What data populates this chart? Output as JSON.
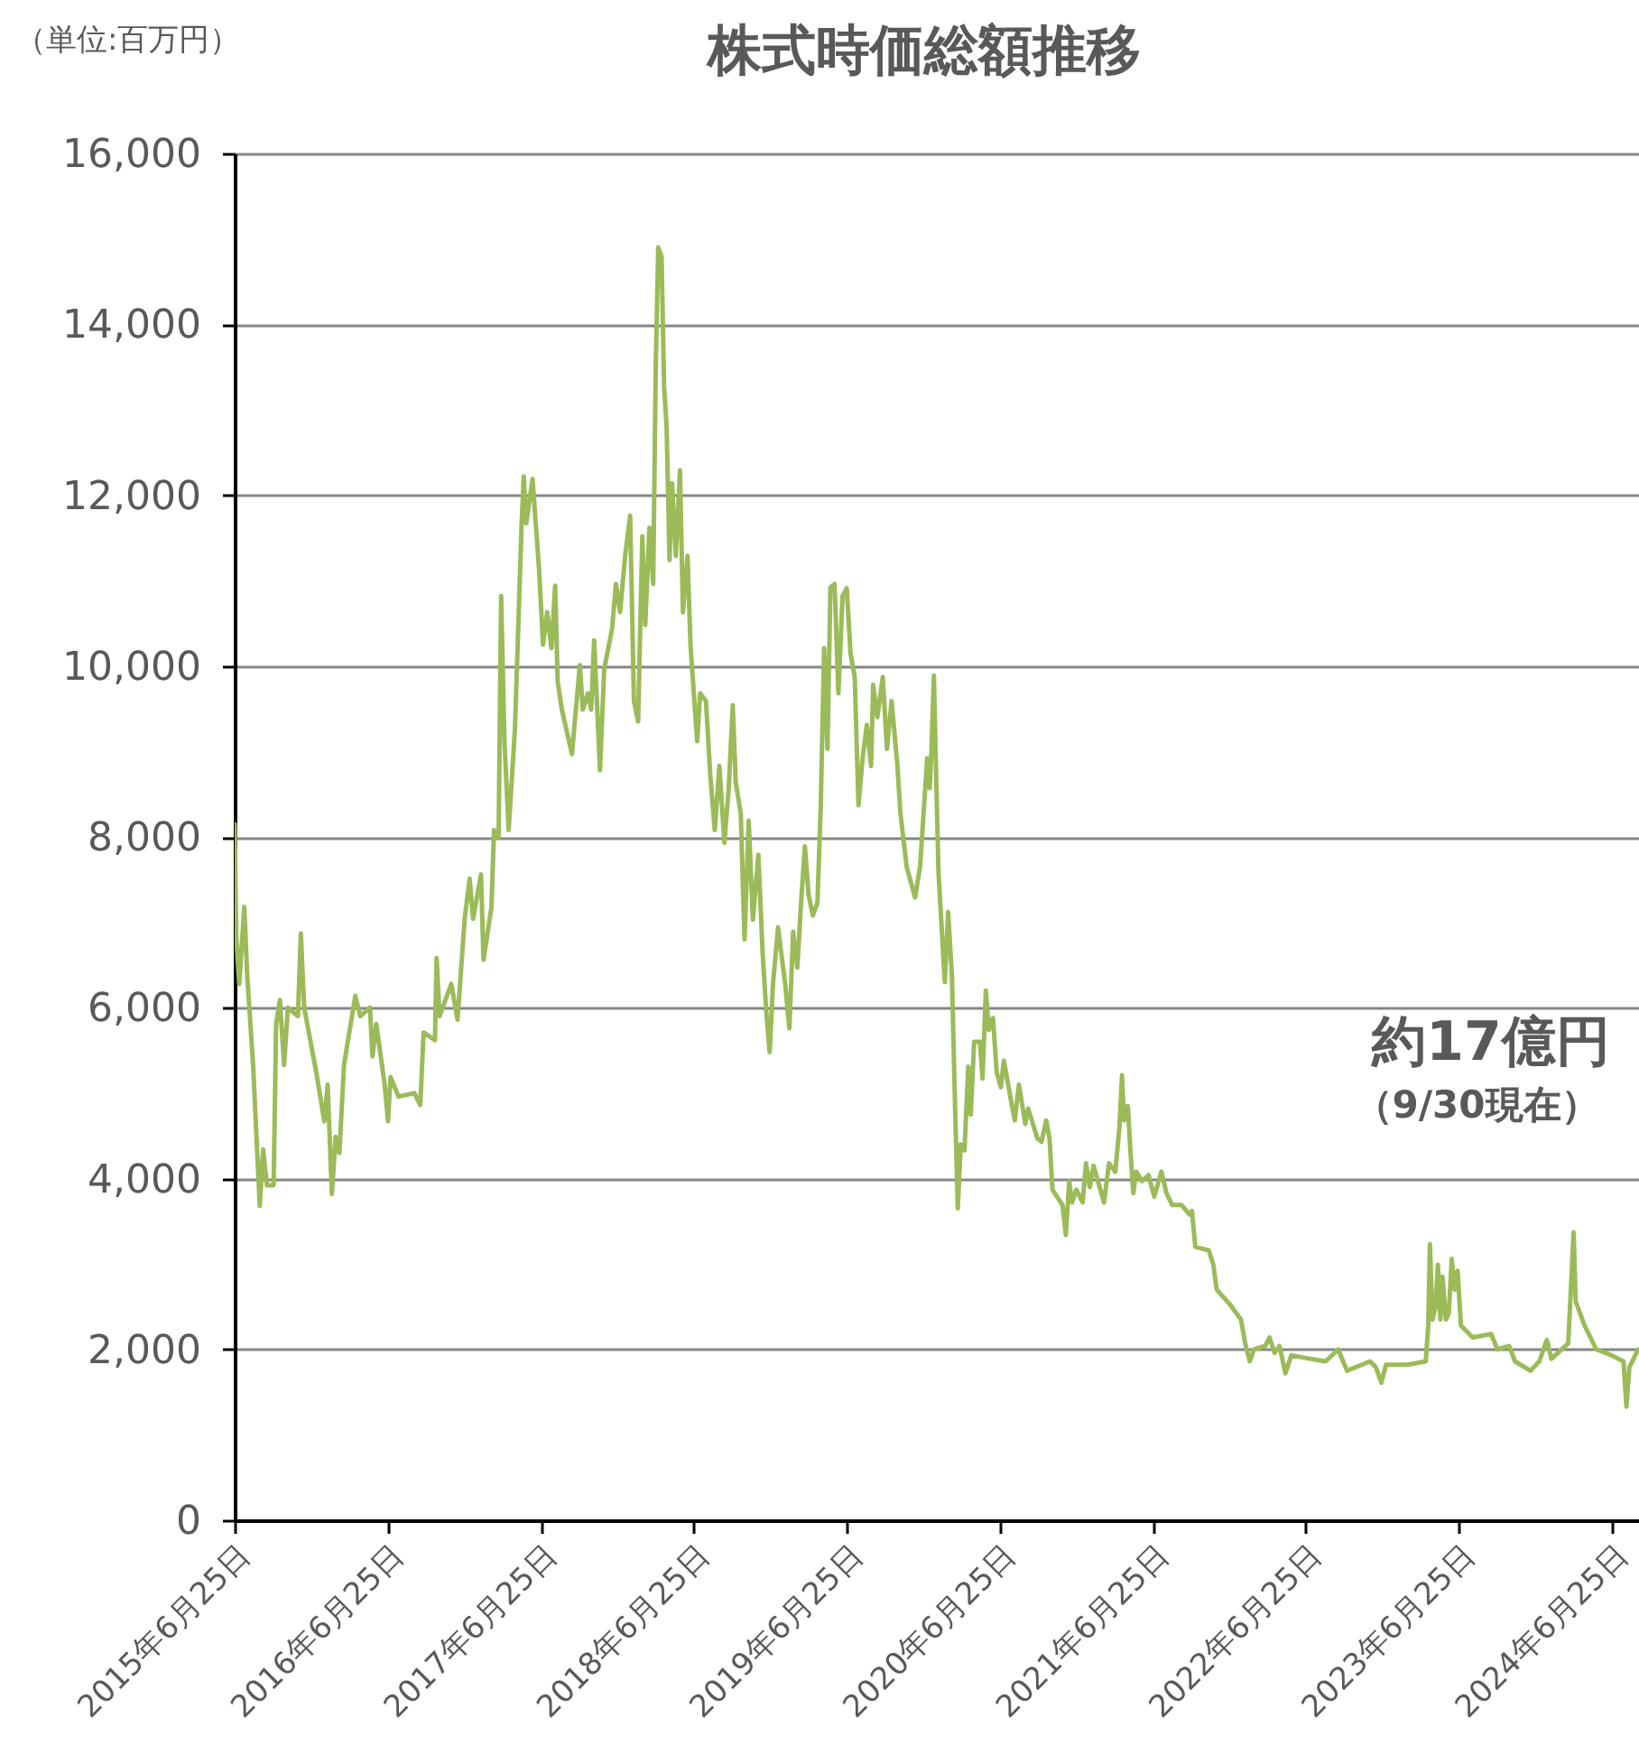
{
  "chart_data": {
    "type": "line",
    "title": "株式時価総額推移",
    "ylabel": "（単位:百万円）",
    "annotations": [
      "約17億円",
      "（9/30現在）"
    ],
    "x": [
      "2015-06-25",
      "2015-06-29",
      "2015-07-06",
      "2015-07-18",
      "2015-07-25",
      "2015-08-08",
      "2015-08-24",
      "2015-09-01",
      "2015-09-10",
      "2015-09-26",
      "2015-10-02",
      "2015-10-11",
      "2015-10-21",
      "2015-10-30",
      "2015-11-23",
      "2015-11-30",
      "2015-12-08",
      "2016-01-06",
      "2016-01-25",
      "2016-02-02",
      "2016-02-12",
      "2016-02-21",
      "2016-03-01",
      "2016-03-12",
      "2016-04-08",
      "2016-04-20",
      "2016-05-13",
      "2016-05-19",
      "2016-05-28",
      "2016-06-17",
      "2016-06-25",
      "2016-07-01",
      "2016-07-20",
      "2016-08-27",
      "2016-09-10",
      "2016-09-18",
      "2016-10-15",
      "2016-10-19",
      "2016-10-26",
      "2016-11-23",
      "2016-12-08",
      "2016-12-25",
      "2017-01-06",
      "2017-01-14",
      "2017-02-02",
      "2017-02-08",
      "2017-02-27",
      "2017-03-05",
      "2017-03-16",
      "2017-03-22",
      "2017-03-30",
      "2017-04-09",
      "2017-04-24",
      "2017-05-10",
      "2017-05-15",
      "2017-05-21",
      "2017-06-05",
      "2017-06-21",
      "2017-06-30",
      "2017-07-10",
      "2017-07-20",
      "2017-07-29",
      "2017-08-04",
      "2017-08-14",
      "2017-09-07",
      "2017-09-26",
      "2017-10-03",
      "2017-10-15",
      "2017-10-23",
      "2017-10-30",
      "2017-11-13",
      "2017-11-23",
      "2017-12-12",
      "2017-12-21",
      "2017-12-31",
      "2018-01-12",
      "2018-01-24",
      "2018-02-02",
      "2018-02-12",
      "2018-02-22",
      "2018-03-01",
      "2018-03-11",
      "2018-03-20",
      "2018-03-26",
      "2018-04-01",
      "2018-04-09",
      "2018-04-15",
      "2018-04-21",
      "2018-04-28",
      "2018-05-04",
      "2018-05-13",
      "2018-05-23",
      "2018-05-30",
      "2018-06-10",
      "2018-06-17",
      "2018-06-25",
      "2018-07-03",
      "2018-07-10",
      "2018-07-24",
      "2018-08-03",
      "2018-08-14",
      "2018-08-25",
      "2018-09-06",
      "2018-09-16",
      "2018-09-26",
      "2018-10-03",
      "2018-10-15",
      "2018-10-24",
      "2018-11-03",
      "2018-11-13",
      "2018-11-26",
      "2018-12-06",
      "2018-12-15",
      "2018-12-23",
      "2018-12-31",
      "2019-01-12",
      "2019-01-29",
      "2019-02-08",
      "2019-02-17",
      "2019-02-27",
      "2019-03-08",
      "2019-03-17",
      "2019-03-26",
      "2019-04-05",
      "2019-04-16",
      "2019-04-24",
      "2019-05-02",
      "2019-05-10",
      "2019-05-17",
      "2019-05-27",
      "2019-06-05",
      "2019-06-15",
      "2019-06-25",
      "2019-07-04",
      "2019-07-14",
      "2019-07-23",
      "2019-08-02",
      "2019-08-12",
      "2019-08-22",
      "2019-08-27",
      "2019-09-06",
      "2019-09-19",
      "2019-09-29",
      "2019-10-10",
      "2019-10-24",
      "2019-10-31",
      "2019-11-15",
      "2019-12-05",
      "2019-12-17",
      "2020-01-03",
      "2020-01-09",
      "2020-01-13",
      "2020-01-19",
      "2020-01-25",
      "2020-01-30",
      "2020-02-14",
      "2020-02-22",
      "2020-03-02",
      "2020-03-10",
      "2020-03-16",
      "2020-03-23",
      "2020-04-01",
      "2020-04-10",
      "2020-04-16",
      "2020-04-24",
      "2020-05-08",
      "2020-05-14",
      "2020-05-22",
      "2020-05-29",
      "2020-06-08",
      "2020-06-17",
      "2020-06-27",
      "2020-07-04",
      "2020-07-22",
      "2020-07-30",
      "2020-08-09",
      "2020-08-24",
      "2020-08-31",
      "2020-09-22",
      "2020-10-02",
      "2020-10-13",
      "2020-10-21",
      "2020-10-28",
      "2020-11-21",
      "2020-11-29",
      "2020-12-07",
      "2020-12-14",
      "2020-12-24",
      "2021-01-08",
      "2021-01-16",
      "2021-01-25",
      "2021-02-03",
      "2021-02-28",
      "2021-03-12",
      "2021-03-27",
      "2021-04-06",
      "2021-04-12",
      "2021-04-17",
      "2021-04-26",
      "2021-05-02",
      "2021-05-09",
      "2021-05-16",
      "2021-05-30",
      "2021-06-14",
      "2021-06-28",
      "2021-07-15",
      "2021-07-27",
      "2021-08-10",
      "2021-09-01",
      "2021-09-20",
      "2021-09-26",
      "2021-10-04",
      "2021-11-05",
      "2021-11-16",
      "2021-11-24",
      "2021-12-25",
      "2022-01-21",
      "2022-01-31",
      "2022-02-11",
      "2022-02-21",
      "2022-03-20",
      "2022-03-30",
      "2022-04-11",
      "2022-04-23",
      "2022-05-07",
      "2022-05-21",
      "2022-07-06",
      "2022-08-11",
      "2022-09-10",
      "2022-10-01",
      "2022-11-25",
      "2022-12-09",
      "2022-12-22",
      "2023-01-02",
      "2023-02-22",
      "2023-04-07",
      "2023-04-13",
      "2023-04-17",
      "2023-04-23",
      "2023-04-30",
      "2023-05-06",
      "2023-05-12",
      "2023-05-17",
      "2023-05-25",
      "2023-06-01",
      "2023-06-08",
      "2023-06-15",
      "2023-06-22",
      "2023-06-30",
      "2023-07-28",
      "2023-09-10",
      "2023-09-25",
      "2023-10-23",
      "2023-11-06",
      "2023-12-13",
      "2024-01-03",
      "2024-01-21",
      "2024-02-01",
      "2024-03-12",
      "2024-03-17",
      "2024-03-25",
      "2024-03-30",
      "2024-04-20",
      "2024-05-18",
      "2024-06-24",
      "2024-07-22",
      "2024-07-29",
      "2024-08-05",
      "2024-08-26"
    ],
    "series": [
      {
        "color": "#9bbb59",
        "values": [
          8150,
          6800,
          6280,
          7180,
          6370,
          5330,
          3680,
          4340,
          3920,
          3920,
          5810,
          6090,
          5330,
          6000,
          5900,
          6870,
          6000,
          5240,
          4670,
          5100,
          3820,
          4490,
          4300,
          5330,
          6140,
          5900,
          6000,
          5430,
          5810,
          5100,
          4670,
          5190,
          4960,
          5000,
          4860,
          5710,
          5620,
          6580,
          5900,
          6280,
          5860,
          7040,
          7510,
          7040,
          7560,
          6560,
          7180,
          8080,
          7990,
          10820,
          9120,
          8080,
          9260,
          11670,
          12220,
          11670,
          12190,
          11100,
          10250,
          10630,
          10210,
          10940,
          9820,
          9490,
          8970,
          10010,
          9490,
          9680,
          9490,
          10300,
          8780,
          9960,
          10440,
          10960,
          10630,
          11290,
          11760,
          9590,
          9350,
          11520,
          10480,
          11620,
          10960,
          13470,
          14900,
          14790,
          13280,
          12800,
          11240,
          12140,
          11290,
          12290,
          10630,
          11290,
          10250,
          9680,
          9120,
          9680,
          9590,
          8740,
          8080,
          8830,
          7930,
          8550,
          9540,
          8640,
          8270,
          6800,
          8190,
          7030,
          7790,
          6660,
          5950,
          5480,
          6280,
          6940,
          6280,
          5760,
          6890,
          6470,
          7230,
          7890,
          7320,
          7080,
          7230,
          8370,
          10210,
          9030,
          10920,
          10960,
          9680,
          10820,
          10910,
          10150,
          9870,
          8370,
          8930,
          9310,
          8830,
          9780,
          9400,
          9870,
          9030,
          9590,
          8830,
          8280,
          7650,
          7290,
          7650,
          8920,
          8570,
          8990,
          9890,
          8570,
          7580,
          6300,
          7120,
          6370,
          4750,
          3650,
          4400,
          4330,
          5310,
          4750,
          5600,
          5600,
          5170,
          6200,
          5740,
          5880,
          5240,
          5070,
          5380,
          4890,
          4680,
          5100,
          4640,
          4820,
          4470,
          4430,
          4680,
          4470,
          3870,
          3690,
          3340,
          3970,
          3720,
          3870,
          3720,
          4180,
          3900,
          4150,
          3720,
          4180,
          4080,
          4610,
          5210,
          4680,
          4850,
          4330,
          3830,
          4080,
          3970,
          4040,
          3790,
          4080,
          3830,
          3690,
          3690,
          3580,
          3620,
          3200,
          3160,
          2990,
          2700,
          2530,
          2350,
          2070,
          1860,
          2000,
          2040,
          2140,
          1960,
          2040,
          1720,
          1930,
          1890,
          1860,
          2000,
          1750,
          1860,
          1790,
          1610,
          1820,
          1820,
          1860,
          2280,
          3230,
          2350,
          2490,
          2990,
          2350,
          2850,
          2350,
          2420,
          3060,
          2700,
          2920,
          2280,
          2140,
          2180,
          2000,
          2040,
          1860,
          1750,
          1860,
          2110,
          1890,
          2070,
          2560,
          3370,
          2560,
          2280,
          2000,
          1930,
          1860,
          1330,
          1790,
          2000
        ]
      }
    ],
    "xlim": [
      "2015-06-25",
      "2024-08-28"
    ],
    "xticks": [
      {
        "value": "2015-06-25",
        "label": "2015年6月25日"
      },
      {
        "value": "2016-06-25",
        "label": "2016年6月25日"
      },
      {
        "value": "2017-06-25",
        "label": "2017年6月25日"
      },
      {
        "value": "2018-06-25",
        "label": "2018年6月25日"
      },
      {
        "value": "2019-06-25",
        "label": "2019年6月25日"
      },
      {
        "value": "2020-06-25",
        "label": "2020年6月25日"
      },
      {
        "value": "2021-06-25",
        "label": "2021年6月25日"
      },
      {
        "value": "2022-06-25",
        "label": "2022年6月25日"
      },
      {
        "value": "2023-06-25",
        "label": "2023年6月25日"
      },
      {
        "value": "2024-06-25",
        "label": "2024年6月25日"
      }
    ],
    "ylim": [
      0,
      16000
    ],
    "yticks": [
      0,
      {
        "value": 2000,
        "label": "2,000"
      },
      {
        "value": 4000,
        "label": "4,000"
      },
      {
        "value": 6000,
        "label": "6,000"
      },
      {
        "value": 8000,
        "label": "8,000"
      },
      {
        "value": 10000,
        "label": "10,000"
      },
      {
        "value": 12000,
        "label": "12,000"
      },
      {
        "value": 14000,
        "label": "14,000"
      },
      {
        "value": 16000,
        "label": "16,000"
      }
    ],
    "grid": "y",
    "line_style": "solid"
  }
}
